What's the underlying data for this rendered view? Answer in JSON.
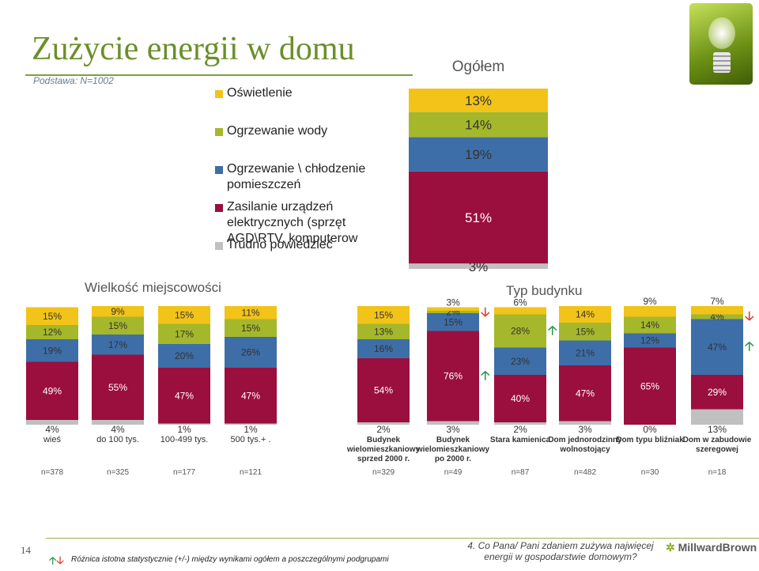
{
  "title": "Zużycie energii w domu",
  "base": "Podstawa: N=1002",
  "legend": [
    {
      "label": "Oświetlenie",
      "color": "#f2c318"
    },
    {
      "label": "Ogrzewanie wody",
      "color": "#a5b72b"
    },
    {
      "label": "Ogrzewanie \\ chłodzenie pomieszczeń",
      "color": "#3d6ea7"
    },
    {
      "label": "Zasilanie urządzeń elektrycznych (sprzęt AGD\\RTV, komputerow",
      "color": "#9a0f3e"
    },
    {
      "label": "Trudno powiedzieć",
      "color": "#c0c0c0"
    }
  ],
  "group_titles": {
    "total": "Ogółem",
    "size": "Wielkość miejscowości",
    "type": "Typ budynku"
  },
  "footnote": "Różnica istotna statystycznie (+/-) między wynikami ogółem  a poszczególnymi podgrupami",
  "question": "4. Co Pana/ Pani zdaniem zużywa najwięcej energii w gospodarstwie domowym?",
  "page_number": "14",
  "logo": "MillwardBrown",
  "arrow_up_glyph": "🡡",
  "arrow_down_glyph": "🡣",
  "chart_data": [
    {
      "type": "bar",
      "stacked": true,
      "title": "Ogółem",
      "categories": [
        "Ogółem"
      ],
      "series": [
        {
          "name": "Oświetlenie",
          "values": [
            13
          ]
        },
        {
          "name": "Ogrzewanie wody",
          "values": [
            14
          ]
        },
        {
          "name": "Ogrzewanie \\ chłodzenie pomieszczeń",
          "values": [
            19
          ]
        },
        {
          "name": "Zasilanie urządzeń elektrycznych",
          "values": [
            51
          ]
        },
        {
          "name": "Trudno powiedzieć",
          "values": [
            3
          ]
        }
      ],
      "ylim": [
        0,
        100
      ]
    },
    {
      "type": "bar",
      "stacked": true,
      "title": "Wielkość miejscowości",
      "categories": [
        "wieś",
        "do 100 tys.",
        "100-499 tys.",
        "500 tys.+ ."
      ],
      "n": [
        "n=378",
        "n=325",
        "n=177",
        "n=121"
      ],
      "series": [
        {
          "name": "Oświetlenie",
          "values": [
            15,
            9,
            15,
            11
          ]
        },
        {
          "name": "Ogrzewanie wody",
          "values": [
            12,
            15,
            17,
            15
          ]
        },
        {
          "name": "Ogrzewanie \\ chłodzenie pomieszczeń",
          "values": [
            19,
            17,
            20,
            26
          ]
        },
        {
          "name": "Zasilanie urządzeń elektrycznych",
          "values": [
            49,
            55,
            47,
            47
          ]
        },
        {
          "name": "Trudno powiedzieć",
          "values": [
            4,
            4,
            1,
            1
          ]
        }
      ],
      "ylim": [
        0,
        100
      ]
    },
    {
      "type": "bar",
      "stacked": true,
      "title": "Typ budynku",
      "categories": [
        "Budynek wielomieszkaniowy sprzed 2000 r.",
        "Budynek wielomieszkaniowy po 2000 r.",
        "Stara kamienica",
        "Dom jednorodzinny wolnostojący",
        "Dom typu bliźniak",
        "Dom w zabudowie szeregowej"
      ],
      "n": [
        "n=329",
        "n=49",
        "n=87",
        "n=482",
        "n=30",
        "n=18"
      ],
      "series": [
        {
          "name": "Oświetlenie",
          "values": [
            15,
            3,
            6,
            14,
            9,
            7
          ]
        },
        {
          "name": "Ogrzewanie wody",
          "values": [
            13,
            2,
            28,
            15,
            14,
            4
          ]
        },
        {
          "name": "Ogrzewanie \\ chłodzenie pomieszczeń",
          "values": [
            16,
            15,
            23,
            21,
            12,
            47
          ]
        },
        {
          "name": "Zasilanie urządzeń elektrycznych",
          "values": [
            54,
            76,
            40,
            47,
            65,
            29
          ]
        },
        {
          "name": "Trudno powiedzieć",
          "values": [
            2,
            3,
            2,
            3,
            0,
            13
          ]
        }
      ],
      "significance": [
        {
          "category": 1,
          "series": 1,
          "direction": "down"
        },
        {
          "category": 1,
          "series": 3,
          "direction": "up"
        },
        {
          "category": 2,
          "series": 1,
          "direction": "up"
        },
        {
          "category": 5,
          "series": 1,
          "direction": "down"
        },
        {
          "category": 5,
          "series": 2,
          "direction": "up"
        }
      ],
      "ylim": [
        0,
        100
      ]
    }
  ]
}
